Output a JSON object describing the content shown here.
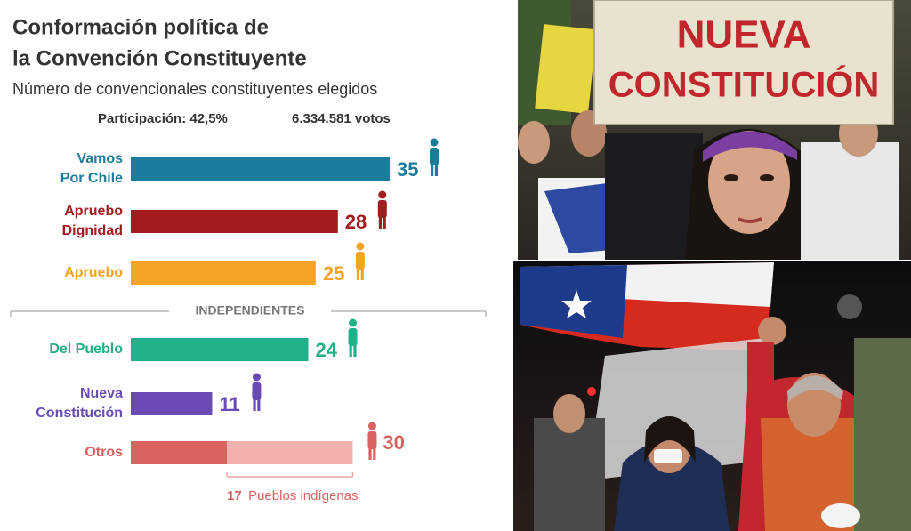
{
  "chart_data": {
    "type": "bar",
    "title_lines": [
      "Conformación política de",
      "la Convención Constituyente"
    ],
    "subtitle": "Número de convencionales constituyentes elegidos",
    "participation": "Participación: 42,5%",
    "votes": "6.334.581 votos",
    "separator": "INDEPENDIENTES",
    "categories": [
      "Vamos Por Chile",
      "Apruebo Dignidad",
      "Apruebo",
      "Del Pueblo",
      "Nueva Constitución",
      "Otros"
    ],
    "values": [
      35,
      28,
      25,
      24,
      11,
      30
    ],
    "colors": [
      "#1d7b9c",
      "#a11b1f",
      "#f4a425",
      "#22b08a",
      "#6a4bb5",
      "#d9625f"
    ],
    "otros_segments": [
      {
        "value": 13,
        "color": "#d9625f"
      },
      {
        "value": 17,
        "color": "#efb0ae",
        "label": "Pueblos indígenas"
      }
    ]
  },
  "photos": {
    "sign_lines": [
      "NUEVA",
      "CONSTITUCIÓN"
    ]
  }
}
